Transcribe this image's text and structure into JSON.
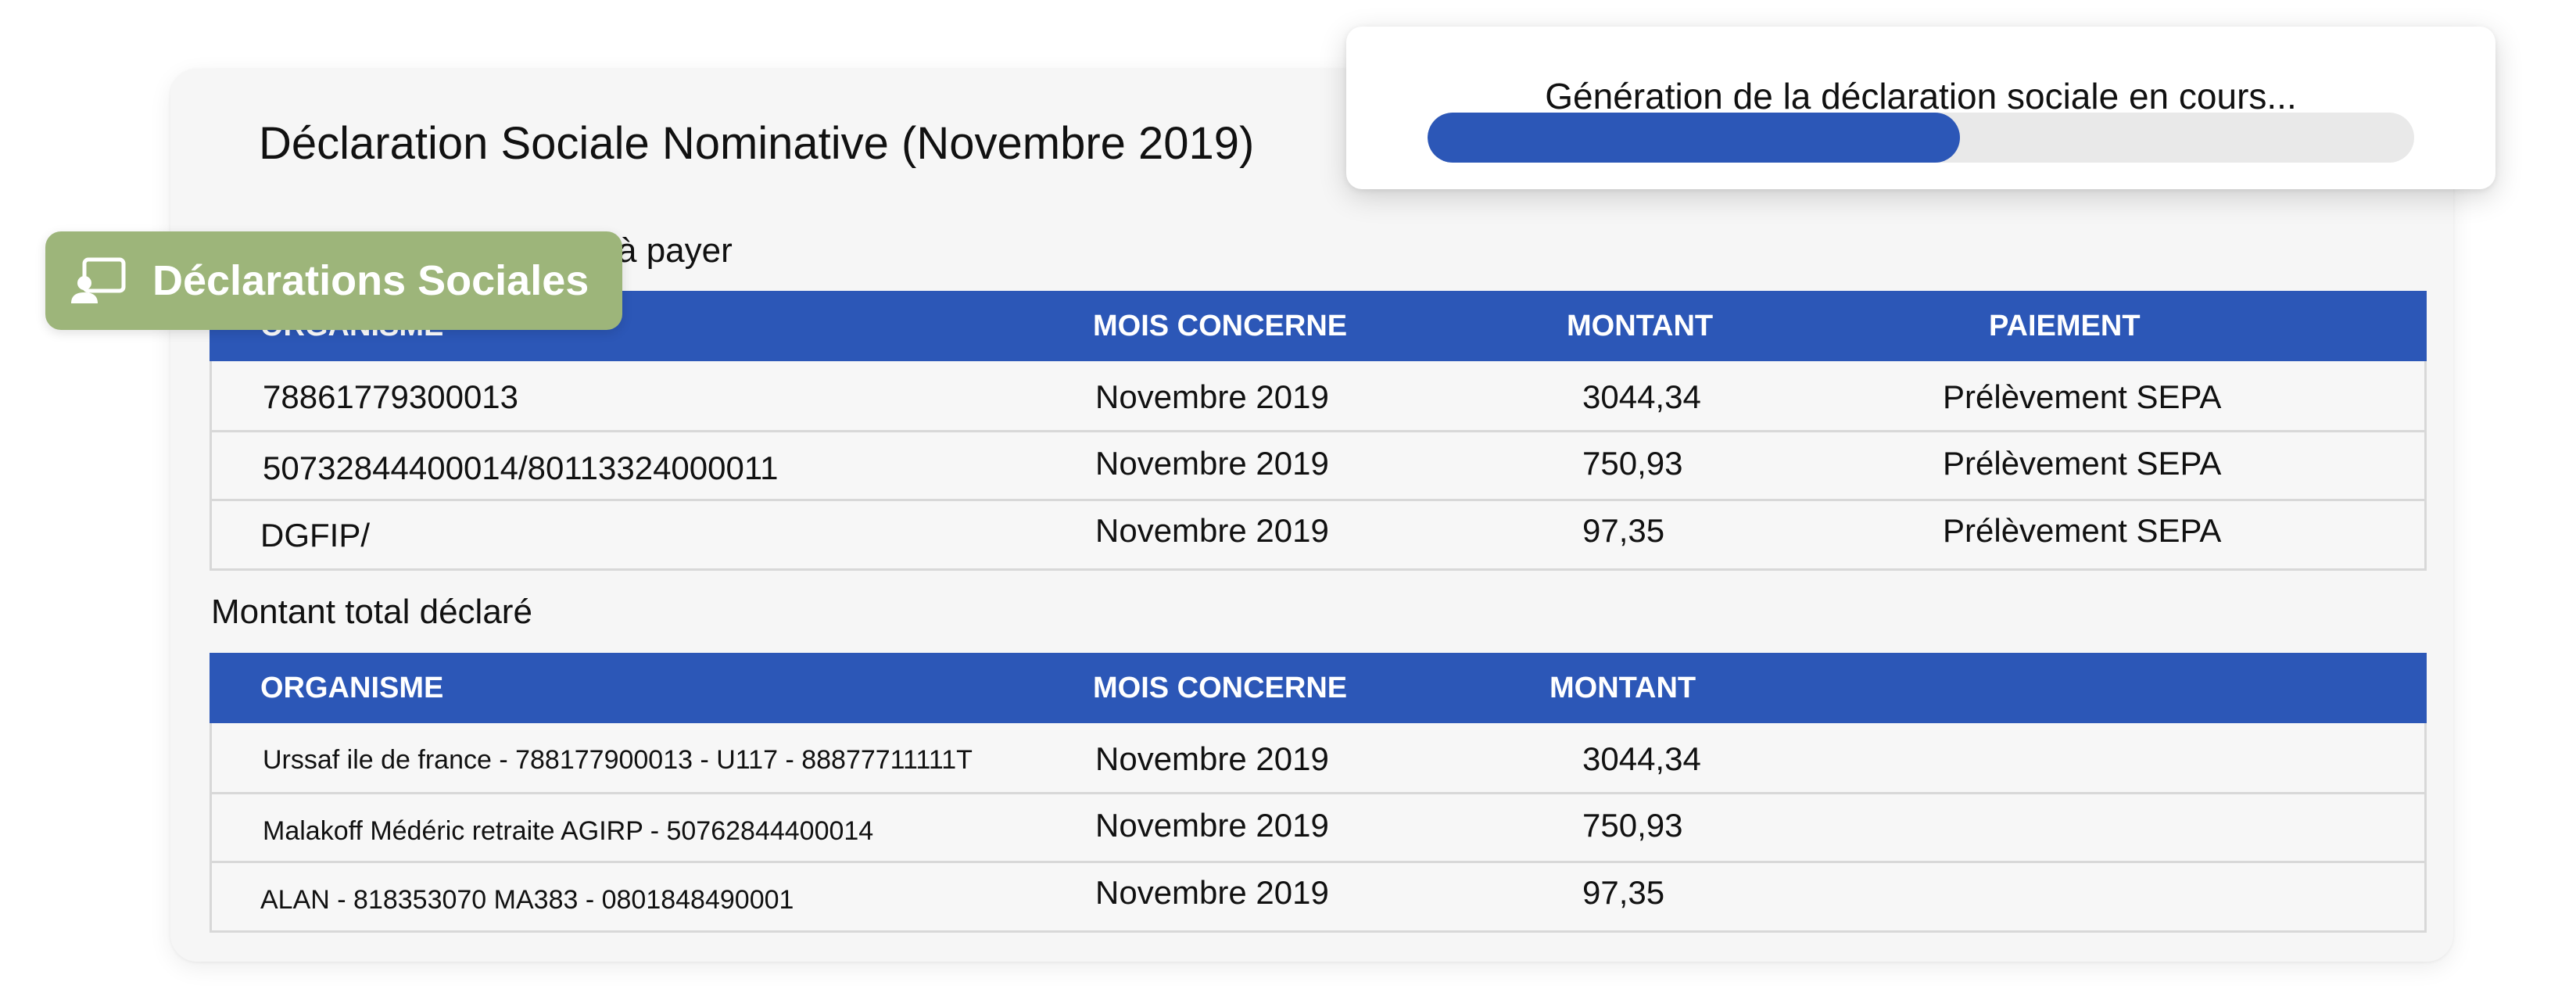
{
  "card": {
    "title": "Déclaration Sociale Nominative (Novembre 2019)"
  },
  "section1": {
    "title_visible": "à payer",
    "columns": [
      "ORGANISME",
      "MOIS CONCERNE",
      "MONTANT",
      "PAIEMENT"
    ],
    "rows": [
      {
        "organisme": "78861779300013",
        "mois": "Novembre 2019",
        "montant": "3044,34",
        "paiement": "Prélèvement SEPA"
      },
      {
        "organisme": "50732844400014/80113324000011",
        "mois": "Novembre 2019",
        "montant": "750,93",
        "paiement": "Prélèvement SEPA"
      },
      {
        "organisme": "DGFIP/",
        "mois": "Novembre 2019",
        "montant": "97,35",
        "paiement": "Prélèvement SEPA"
      }
    ]
  },
  "section2": {
    "title": "Montant total déclaré",
    "columns": [
      "ORGANISME",
      "MOIS CONCERNE",
      "MONTANT"
    ],
    "rows": [
      {
        "organisme": "Urssaf ile de france - 788177900013 - U117 - 88877711111T",
        "mois": "Novembre 2019",
        "montant": "3044,34"
      },
      {
        "organisme": "Malakoff Médéric retraite AGIRP - 50762844400014",
        "mois": "Novembre 2019",
        "montant": "750,93"
      },
      {
        "organisme": "ALAN - 818353070 MA383 - 0801848490001",
        "mois": "Novembre 2019",
        "montant": "97,35"
      }
    ]
  },
  "badge": {
    "label": "Déclarations Sociales",
    "icon": "person-screen-icon",
    "color": "#9db57a"
  },
  "progress": {
    "text": "Génération de la déclaration sociale en cours...",
    "value": 0.54,
    "color": "#2c57b7"
  },
  "colors": {
    "header_blue": "#2c57b7",
    "card_bg": "#f6f6f6"
  }
}
